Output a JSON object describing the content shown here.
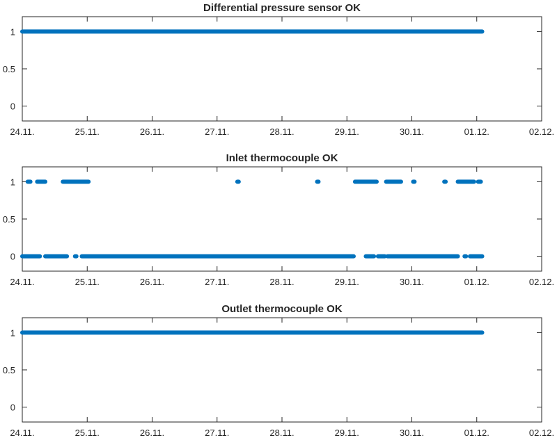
{
  "chart_data": [
    {
      "type": "scatter",
      "title": "Differential pressure sensor OK",
      "xlabel": "",
      "ylabel": "",
      "x_tick_labels": [
        "24.11.",
        "25.11.",
        "26.11.",
        "27.11.",
        "28.11.",
        "29.11.",
        "30.11.",
        "01.12.",
        "02.12."
      ],
      "y_ticks": [
        0,
        0.5,
        1
      ],
      "y_tick_labels": [
        "0",
        "0.5",
        "1"
      ],
      "xlim": [
        "24.11.",
        "02.12."
      ],
      "ylim": [
        -0.2,
        1.2
      ],
      "grid": false,
      "color": "#0072BD",
      "series": [
        {
          "values": [
            1
          ],
          "segments": [
            [
              "24.11. 00:00",
              "01.12. 02:00"
            ]
          ]
        }
      ]
    },
    {
      "type": "scatter",
      "title": "Inlet thermocouple OK",
      "xlabel": "",
      "ylabel": "",
      "x_tick_labels": [
        "24.11.",
        "25.11.",
        "26.11.",
        "27.11.",
        "28.11.",
        "29.11.",
        "30.11.",
        "01.12.",
        "02.12."
      ],
      "y_ticks": [
        0,
        0.5,
        1
      ],
      "y_tick_labels": [
        "0",
        "0.5",
        "1"
      ],
      "xlim": [
        "24.11.",
        "02.12."
      ],
      "ylim": [
        -0.2,
        1.2
      ],
      "grid": false,
      "color": "#0072BD",
      "series": [
        {
          "values": [
            1
          ],
          "segments": [
            [
              "24.11. 02:00",
              "24.11. 03:00"
            ],
            [
              "24.11. 05:30",
              "24.11. 08:30"
            ],
            [
              "24.11. 15:00",
              "25.11. 00:30"
            ],
            [
              "27.11. 07:30",
              "27.11. 08:00"
            ],
            [
              "28.11. 13:00",
              "28.11. 13:30"
            ],
            [
              "29.11. 03:00",
              "29.11. 11:00"
            ],
            [
              "29.11. 14:30",
              "29.11. 20:00"
            ],
            [
              "30.11. 00:30",
              "30.11. 01:00"
            ],
            [
              "30.11. 12:00",
              "30.11. 12:30"
            ],
            [
              "30.11. 17:00",
              "30.11. 23:00"
            ],
            [
              "01.12. 00:30",
              "01.12. 01:30"
            ]
          ]
        },
        {
          "values": [
            0
          ],
          "segments": [
            [
              "24.11. 00:00",
              "24.11. 06:30"
            ],
            [
              "24.11. 08:30",
              "24.11. 16:30"
            ],
            [
              "24.11. 19:30",
              "24.11. 20:00"
            ],
            [
              "24.11. 22:00",
              "29.11. 02:30"
            ],
            [
              "29.11. 07:00",
              "29.11. 10:00"
            ],
            [
              "29.11. 11:30",
              "29.11. 14:00"
            ],
            [
              "29.11. 15:00",
              "30.11. 17:00"
            ],
            [
              "30.11. 19:30",
              "30.11. 20:00"
            ],
            [
              "30.11. 21:30",
              "01.12. 02:00"
            ]
          ]
        }
      ]
    },
    {
      "type": "scatter",
      "title": "Outlet thermocouple OK",
      "xlabel": "",
      "ylabel": "",
      "x_tick_labels": [
        "24.11.",
        "25.11.",
        "26.11.",
        "27.11.",
        "28.11.",
        "29.11.",
        "30.11.",
        "01.12.",
        "02.12."
      ],
      "y_ticks": [
        0,
        0.5,
        1
      ],
      "y_tick_labels": [
        "0",
        "0.5",
        "1"
      ],
      "xlim": [
        "24.11.",
        "02.12."
      ],
      "ylim": [
        -0.2,
        1.2
      ],
      "grid": false,
      "color": "#0072BD",
      "series": [
        {
          "values": [
            1
          ],
          "segments": [
            [
              "24.11. 00:00",
              "01.12. 02:00"
            ]
          ]
        }
      ]
    }
  ]
}
